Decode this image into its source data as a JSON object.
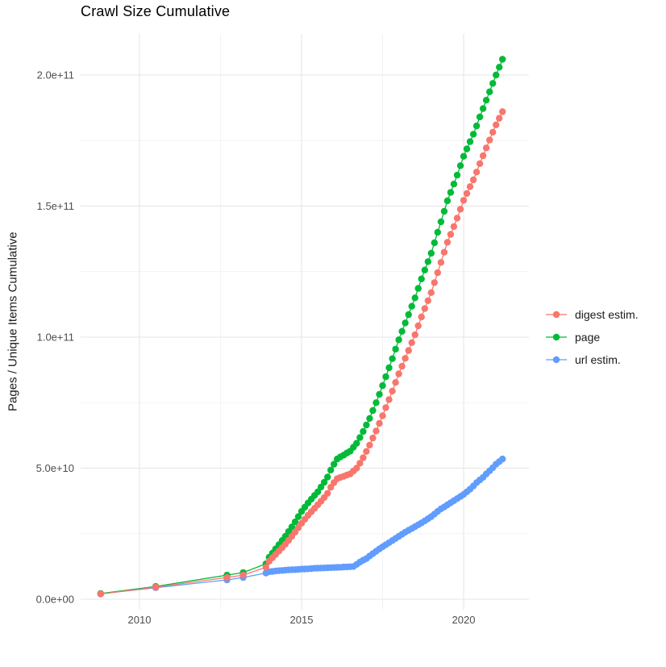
{
  "title": "Crawl Size Cumulative",
  "colors": {
    "background": "#FFFFFF",
    "grid_major": "#E5E5E5",
    "grid_minor": "#F0F0F0",
    "axis_text": "#4D4D4D",
    "title_text": "#000000",
    "digest_estim": "#F8766D",
    "page": "#00BA38",
    "url_estim": "#619CFF"
  },
  "chart_data": {
    "type": "line",
    "title": "Crawl Size Cumulative",
    "xlabel": "",
    "ylabel": "Pages / Unique Items Cumulative",
    "y_unit": "items (values below are billions, 1e9)",
    "grid": true,
    "legend_position": "right",
    "x_axis": {
      "range": [
        2008.2,
        2022.0
      ],
      "major_ticks": [
        {
          "value": 2010,
          "label": "2010"
        },
        {
          "value": 2015,
          "label": "2015"
        },
        {
          "value": 2020,
          "label": "2020"
        }
      ],
      "minor_ticks": [
        2012.5,
        2017.5
      ]
    },
    "y_axis": {
      "range_billions": [
        -10,
        216
      ],
      "major_ticks": [
        {
          "value": 0,
          "label": "0.0e+00"
        },
        {
          "value": 50,
          "label": "5.0e+10"
        },
        {
          "value": 100,
          "label": "1.0e+11"
        },
        {
          "value": 150,
          "label": "1.5e+11"
        },
        {
          "value": 200,
          "label": "2.0e+11"
        }
      ],
      "minor_ticks": [
        25,
        75,
        125,
        175
      ]
    },
    "series": [
      {
        "name": "digest estim.",
        "color": "#F8766D",
        "points": [
          [
            2008.8,
            2
          ],
          [
            2010.5,
            4.6
          ],
          [
            2012.7,
            8.3
          ],
          [
            2013.2,
            9.2
          ],
          [
            2013.9,
            12.2
          ],
          [
            2014.0,
            14.5
          ],
          [
            2014.1,
            15.8
          ],
          [
            2014.2,
            17.1
          ],
          [
            2014.3,
            18.4
          ],
          [
            2014.4,
            19.7
          ],
          [
            2014.5,
            21
          ],
          [
            2014.6,
            22.5
          ],
          [
            2014.7,
            24
          ],
          [
            2014.8,
            25.6
          ],
          [
            2014.9,
            27.3
          ],
          [
            2015.0,
            29
          ],
          [
            2015.1,
            30.5
          ],
          [
            2015.2,
            32
          ],
          [
            2015.3,
            33.4
          ],
          [
            2015.4,
            34.7
          ],
          [
            2015.5,
            36
          ],
          [
            2015.6,
            37.4
          ],
          [
            2015.7,
            38.8
          ],
          [
            2015.8,
            40.4
          ],
          [
            2015.9,
            42.7
          ],
          [
            2016.0,
            44.5
          ],
          [
            2016.1,
            46
          ],
          [
            2016.2,
            46.5
          ],
          [
            2016.3,
            46.9
          ],
          [
            2016.4,
            47.4
          ],
          [
            2016.5,
            47.8
          ],
          [
            2016.6,
            48.9
          ],
          [
            2016.7,
            50
          ],
          [
            2016.8,
            51.9
          ],
          [
            2016.9,
            54
          ],
          [
            2017.0,
            56.4
          ],
          [
            2017.1,
            58.8
          ],
          [
            2017.2,
            61.5
          ],
          [
            2017.3,
            64.2
          ],
          [
            2017.4,
            67.1
          ],
          [
            2017.5,
            70
          ],
          [
            2017.6,
            73.1
          ],
          [
            2017.7,
            76.2
          ],
          [
            2017.8,
            79.4
          ],
          [
            2017.9,
            82.7
          ],
          [
            2018.0,
            86
          ],
          [
            2018.1,
            88.9
          ],
          [
            2018.2,
            91.9
          ],
          [
            2018.3,
            94.9
          ],
          [
            2018.4,
            97.9
          ],
          [
            2018.5,
            100.9
          ],
          [
            2018.6,
            104.3
          ],
          [
            2018.7,
            107.7
          ],
          [
            2018.8,
            110.9
          ],
          [
            2018.9,
            113.9
          ],
          [
            2019.0,
            117
          ],
          [
            2019.1,
            120.8
          ],
          [
            2019.2,
            124.6
          ],
          [
            2019.3,
            128.5
          ],
          [
            2019.4,
            132.4
          ],
          [
            2019.5,
            136.2
          ],
          [
            2019.6,
            139.2
          ],
          [
            2019.7,
            142.2
          ],
          [
            2019.8,
            145.4
          ],
          [
            2019.9,
            148.8
          ],
          [
            2020.0,
            152.2
          ],
          [
            2020.1,
            154.8
          ],
          [
            2020.2,
            157.4
          ],
          [
            2020.3,
            160
          ],
          [
            2020.4,
            163
          ],
          [
            2020.5,
            166.2
          ],
          [
            2020.6,
            169.2
          ],
          [
            2020.7,
            172.2
          ],
          [
            2020.8,
            175.2
          ],
          [
            2020.9,
            178.2
          ],
          [
            2021.0,
            181
          ],
          [
            2021.1,
            183.5
          ],
          [
            2021.2,
            186
          ]
        ]
      },
      {
        "name": "page",
        "color": "#00BA38",
        "points": [
          [
            2008.8,
            2.2
          ],
          [
            2010.5,
            4.9
          ],
          [
            2012.7,
            9.2
          ],
          [
            2013.2,
            10.2
          ],
          [
            2013.9,
            13.5
          ],
          [
            2014.0,
            16
          ],
          [
            2014.1,
            17.6
          ],
          [
            2014.2,
            19.2
          ],
          [
            2014.3,
            20.8
          ],
          [
            2014.4,
            22.4
          ],
          [
            2014.5,
            24
          ],
          [
            2014.6,
            25.8
          ],
          [
            2014.7,
            27.6
          ],
          [
            2014.8,
            29.5
          ],
          [
            2014.9,
            31.5
          ],
          [
            2015.0,
            33.5
          ],
          [
            2015.1,
            35.1
          ],
          [
            2015.2,
            36.7
          ],
          [
            2015.3,
            38.2
          ],
          [
            2015.4,
            39.6
          ],
          [
            2015.5,
            41
          ],
          [
            2015.6,
            42.8
          ],
          [
            2015.7,
            44.6
          ],
          [
            2015.8,
            46.6
          ],
          [
            2015.9,
            49.3
          ],
          [
            2016.0,
            51.5
          ],
          [
            2016.1,
            53.5
          ],
          [
            2016.2,
            54.3
          ],
          [
            2016.3,
            55
          ],
          [
            2016.4,
            55.8
          ],
          [
            2016.5,
            56.5
          ],
          [
            2016.6,
            58
          ],
          [
            2016.7,
            59.5
          ],
          [
            2016.8,
            61.7
          ],
          [
            2016.9,
            64
          ],
          [
            2017.0,
            66.5
          ],
          [
            2017.1,
            69
          ],
          [
            2017.2,
            72
          ],
          [
            2017.3,
            75
          ],
          [
            2017.4,
            78.2
          ],
          [
            2017.5,
            81.5
          ],
          [
            2017.6,
            84.9
          ],
          [
            2017.7,
            88.3
          ],
          [
            2017.8,
            91.8
          ],
          [
            2017.9,
            95.4
          ],
          [
            2018.0,
            99
          ],
          [
            2018.1,
            102.2
          ],
          [
            2018.2,
            105.4
          ],
          [
            2018.3,
            108.6
          ],
          [
            2018.4,
            111.8
          ],
          [
            2018.5,
            115
          ],
          [
            2018.6,
            118.6
          ],
          [
            2018.7,
            122.2
          ],
          [
            2018.8,
            125.6
          ],
          [
            2018.9,
            128.8
          ],
          [
            2019.0,
            132
          ],
          [
            2019.1,
            136
          ],
          [
            2019.2,
            140
          ],
          [
            2019.3,
            144
          ],
          [
            2019.4,
            148
          ],
          [
            2019.5,
            152
          ],
          [
            2019.6,
            155.2
          ],
          [
            2019.7,
            158.4
          ],
          [
            2019.8,
            161.8
          ],
          [
            2019.9,
            165.4
          ],
          [
            2020.0,
            169
          ],
          [
            2020.1,
            171.8
          ],
          [
            2020.2,
            174.6
          ],
          [
            2020.3,
            177.4
          ],
          [
            2020.4,
            180.6
          ],
          [
            2020.5,
            184
          ],
          [
            2020.6,
            187.2
          ],
          [
            2020.7,
            190.4
          ],
          [
            2020.8,
            193.6
          ],
          [
            2020.9,
            196.8
          ],
          [
            2021.0,
            200
          ],
          [
            2021.1,
            203
          ],
          [
            2021.2,
            206
          ]
        ]
      },
      {
        "name": "url estim.",
        "color": "#619CFF",
        "points": [
          [
            2008.8,
            2.1
          ],
          [
            2010.5,
            4.4
          ],
          [
            2012.7,
            7.4
          ],
          [
            2013.2,
            8.3
          ],
          [
            2013.9,
            10
          ],
          [
            2014.0,
            10.5
          ],
          [
            2014.1,
            10.6
          ],
          [
            2014.2,
            10.8
          ],
          [
            2014.3,
            10.9
          ],
          [
            2014.4,
            11
          ],
          [
            2014.5,
            11.1
          ],
          [
            2014.6,
            11.2
          ],
          [
            2014.7,
            11.25
          ],
          [
            2014.8,
            11.3
          ],
          [
            2014.9,
            11.4
          ],
          [
            2015.0,
            11.5
          ],
          [
            2015.1,
            11.55
          ],
          [
            2015.2,
            11.6
          ],
          [
            2015.3,
            11.7
          ],
          [
            2015.4,
            11.8
          ],
          [
            2015.5,
            11.85
          ],
          [
            2015.6,
            11.9
          ],
          [
            2015.7,
            11.95
          ],
          [
            2015.8,
            12
          ],
          [
            2015.9,
            12.05
          ],
          [
            2016.0,
            12.1
          ],
          [
            2016.1,
            12.15
          ],
          [
            2016.2,
            12.2
          ],
          [
            2016.3,
            12.3
          ],
          [
            2016.4,
            12.35
          ],
          [
            2016.5,
            12.4
          ],
          [
            2016.6,
            12.5
          ],
          [
            2016.7,
            13.3
          ],
          [
            2016.8,
            14.2
          ],
          [
            2016.9,
            14.9
          ],
          [
            2017.0,
            15.5
          ],
          [
            2017.1,
            16.5
          ],
          [
            2017.2,
            17.4
          ],
          [
            2017.3,
            18.3
          ],
          [
            2017.4,
            19.2
          ],
          [
            2017.5,
            20
          ],
          [
            2017.6,
            20.8
          ],
          [
            2017.7,
            21.6
          ],
          [
            2017.8,
            22.4
          ],
          [
            2017.9,
            23.2
          ],
          [
            2018.0,
            24
          ],
          [
            2018.1,
            24.8
          ],
          [
            2018.2,
            25.6
          ],
          [
            2018.3,
            26.3
          ],
          [
            2018.4,
            27
          ],
          [
            2018.5,
            27.7
          ],
          [
            2018.6,
            28.4
          ],
          [
            2018.7,
            29.1
          ],
          [
            2018.8,
            29.9
          ],
          [
            2018.9,
            30.7
          ],
          [
            2019.0,
            31.5
          ],
          [
            2019.1,
            32.5
          ],
          [
            2019.2,
            33.5
          ],
          [
            2019.3,
            34.5
          ],
          [
            2019.4,
            35.2
          ],
          [
            2019.5,
            36
          ],
          [
            2019.6,
            36.8
          ],
          [
            2019.7,
            37.6
          ],
          [
            2019.8,
            38.4
          ],
          [
            2019.9,
            39.2
          ],
          [
            2020.0,
            40
          ],
          [
            2020.1,
            41
          ],
          [
            2020.2,
            42
          ],
          [
            2020.3,
            43.2
          ],
          [
            2020.4,
            44.5
          ],
          [
            2020.5,
            45.5
          ],
          [
            2020.6,
            46.5
          ],
          [
            2020.7,
            47.8
          ],
          [
            2020.8,
            49
          ],
          [
            2020.9,
            50.2
          ],
          [
            2021.0,
            51.5
          ],
          [
            2021.1,
            52.5
          ],
          [
            2021.2,
            53.5
          ]
        ]
      }
    ]
  }
}
